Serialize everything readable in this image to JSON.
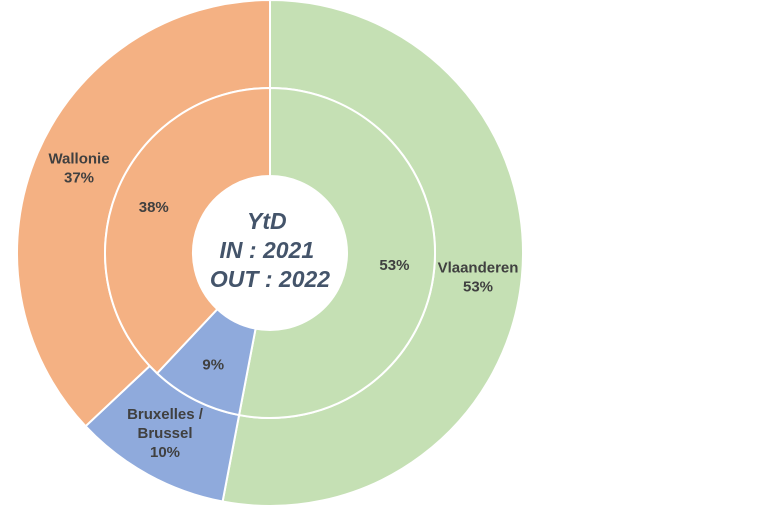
{
  "chart_data": {
    "type": "donut",
    "center_text": [
      "YtD",
      "IN : 2021",
      "OUT : 2022"
    ],
    "series": [
      {
        "ring": "inner",
        "values": [
          {
            "category": "Vlaanderen",
            "value": 53,
            "label": "53%"
          },
          {
            "category": "Bruxelles / Brussel",
            "value": 9,
            "label": "9%"
          },
          {
            "category": "Wallonie",
            "value": 38,
            "label": "38%"
          }
        ]
      },
      {
        "ring": "outer",
        "values": [
          {
            "category": "Vlaanderen",
            "value": 53,
            "label": "53%"
          },
          {
            "category": "Bruxelles / Brussel",
            "value": 10,
            "label": "10%"
          },
          {
            "category": "Wallonie",
            "value": 37,
            "label": "37%"
          }
        ]
      }
    ],
    "category_labels": {
      "Vlaanderen": [
        "Vlaanderen",
        "53%"
      ],
      "Bruxelles / Brussel": [
        "Bruxelles /",
        "Brussel",
        "10%"
      ],
      "Wallonie": [
        "Wallonie",
        "37%"
      ]
    },
    "colors": {
      "Vlaanderen": "#c5e0b4",
      "Bruxelles / Brussel": "#8faadc",
      "Wallonie": "#f4b183"
    }
  }
}
